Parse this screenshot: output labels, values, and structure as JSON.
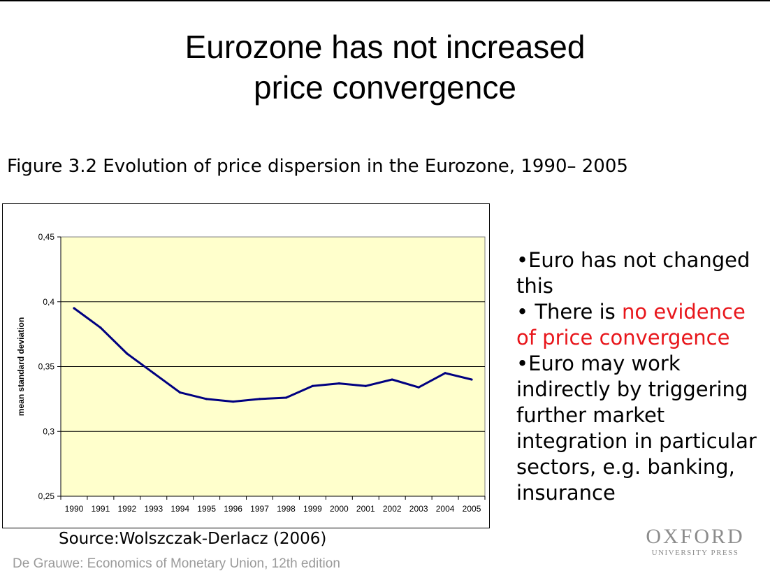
{
  "slide": {
    "title_line1": "Eurozone has not increased",
    "title_line2": "price convergence",
    "figure_caption": "Figure 3.2  Evolution of price dispersion in the Eurozone, 1990– 2005",
    "source": "Source:Wolszczak-Derlacz (2006)",
    "footer": "De Grauwe: Economics of Monetary Union, 12th edition",
    "logo_main": "OXFORD",
    "logo_sub": "UNIVERSITY PRESS"
  },
  "bullets": [
    {
      "prefix": "•Euro has not changed this",
      "highlight": "",
      "suffix": ""
    },
    {
      "prefix": "• There is ",
      "highlight": "no evidence of price convergence",
      "suffix": ""
    },
    {
      "prefix": "•Euro may work indirectly by triggering further market integration in particular sectors, e.g. banking, insurance",
      "highlight": "",
      "suffix": ""
    }
  ],
  "colors": {
    "plot_background": "#ffffcc",
    "line": "#000080",
    "highlight_text": "#e8161b",
    "footer_text": "#9a9a9a"
  },
  "chart_data": {
    "type": "line",
    "title": "",
    "xlabel": "",
    "ylabel": "mean standard deviation",
    "categories": [
      "1990",
      "1991",
      "1992",
      "1993",
      "1994",
      "1995",
      "1996",
      "1997",
      "1998",
      "1999",
      "2000",
      "2001",
      "2002",
      "2003",
      "2004",
      "2005"
    ],
    "series": [
      {
        "values": [
          0.395,
          0.38,
          0.36,
          0.345,
          0.33,
          0.325,
          0.323,
          0.325,
          0.326,
          0.335,
          0.337,
          0.335,
          0.34,
          0.334,
          0.345,
          0.34
        ]
      }
    ],
    "ylim": [
      0.25,
      0.45
    ],
    "yticks": [
      0.25,
      0.3,
      0.35,
      0.4,
      0.45
    ],
    "ytick_labels": [
      "0,25",
      "0,3",
      "0,35",
      "0,4",
      "0,45"
    ],
    "grid": "horizontal",
    "legend": "none"
  }
}
